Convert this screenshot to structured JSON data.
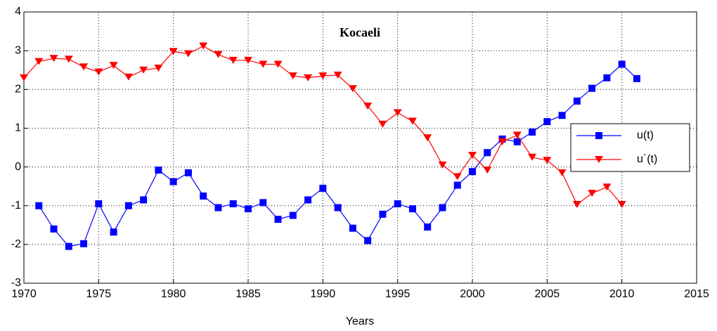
{
  "chart_data": {
    "type": "line",
    "title": "Kocaeli",
    "xlabel": "Years",
    "x": [
      1970,
      1971,
      1972,
      1973,
      1974,
      1975,
      1976,
      1977,
      1978,
      1979,
      1980,
      1981,
      1982,
      1983,
      1984,
      1985,
      1986,
      1987,
      1988,
      1989,
      1990,
      1991,
      1992,
      1993,
      1994,
      1995,
      1996,
      1997,
      1998,
      1999,
      2000,
      2001,
      2002,
      2003,
      2004,
      2005,
      2006,
      2007,
      2008,
      2009,
      2010,
      2011
    ],
    "series": [
      {
        "name": "u(t)",
        "color": "#0000ff",
        "marker": "square",
        "values": [
          null,
          -1.0,
          -1.6,
          -2.05,
          -1.98,
          -0.95,
          -1.68,
          -1.0,
          -0.85,
          -0.08,
          -0.38,
          -0.15,
          -0.75,
          -1.05,
          -0.95,
          -1.08,
          -0.92,
          -1.35,
          -1.25,
          -0.85,
          -0.55,
          -1.05,
          -1.58,
          -1.9,
          -1.22,
          -0.95,
          -1.08,
          -1.55,
          -1.05,
          -0.47,
          -0.12,
          0.37,
          0.72,
          0.65,
          0.9,
          1.17,
          1.33,
          1.7,
          2.03,
          2.3,
          2.65,
          2.28
        ]
      },
      {
        "name": "u´(t)",
        "color": "#ff0000",
        "marker": "triangle-down",
        "values": [
          2.3,
          2.72,
          2.8,
          2.78,
          2.58,
          2.45,
          2.62,
          2.32,
          2.5,
          2.55,
          2.98,
          2.92,
          3.12,
          2.9,
          2.75,
          2.75,
          2.65,
          2.65,
          2.35,
          2.3,
          2.35,
          2.37,
          2.02,
          1.57,
          1.1,
          1.4,
          1.18,
          0.75,
          0.05,
          -0.25,
          0.3,
          -0.08,
          0.65,
          0.82,
          0.25,
          0.17,
          -0.15,
          -0.97,
          -0.68,
          -0.52,
          -0.97,
          null
        ]
      }
    ],
    "xlim": [
      1970,
      2015
    ],
    "xticks": [
      1970,
      1975,
      1980,
      1985,
      1990,
      1995,
      2000,
      2005,
      2010,
      2015
    ],
    "ylim": [
      -3,
      4
    ],
    "yticks": [
      -3,
      -2,
      -1,
      0,
      1,
      2,
      3,
      4
    ],
    "grid": true,
    "legend": "east"
  }
}
